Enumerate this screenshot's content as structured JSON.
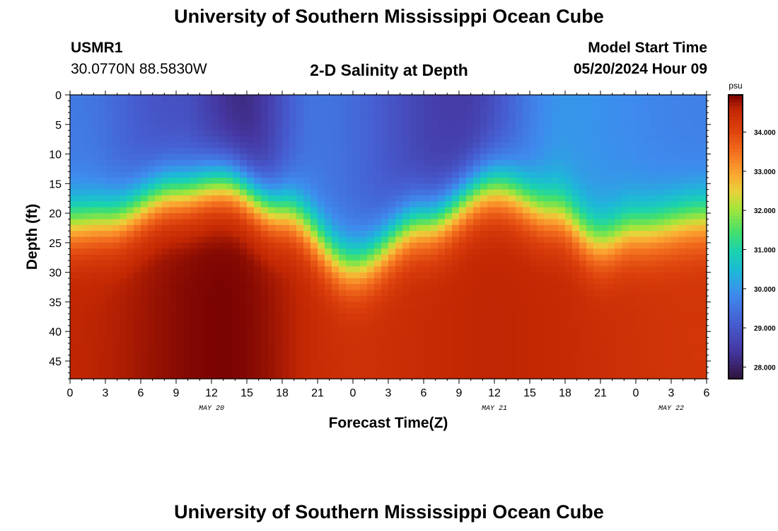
{
  "header": {
    "title": "University of Southern Mississippi Ocean Cube",
    "station_id": "USMR1",
    "station_coords": "30.0770N  88.5830W",
    "plot_title": "2-D Salinity at Depth",
    "model_start_label": "Model Start Time",
    "model_start_value": "05/20/2024 Hour 09"
  },
  "footer": {
    "title": "University of Southern Mississippi Ocean Cube"
  },
  "colors": {
    "background": "#ffffff",
    "text": "#000000"
  },
  "chart_data": {
    "type": "heatmap",
    "title": "2-D Salinity at Depth",
    "xlabel": "Forecast Time(Z)",
    "ylabel": "Depth (ft)",
    "x_tick_labels": [
      "0",
      "3",
      "6",
      "9",
      "12",
      "15",
      "18",
      "21",
      "0",
      "3",
      "6",
      "9",
      "12",
      "15",
      "18",
      "21",
      "0",
      "3",
      "6"
    ],
    "date_labels": [
      {
        "label": "MAY 20",
        "tick_index": 4
      },
      {
        "label": "MAY 21",
        "tick_index": 12
      },
      {
        "label": "MAY 22",
        "tick_index": 17
      }
    ],
    "xlim_hours": [
      0,
      54
    ],
    "y_ticks": [
      0,
      5,
      10,
      15,
      20,
      25,
      30,
      35,
      40,
      45
    ],
    "ylim": [
      0,
      48
    ],
    "colorbar": {
      "unit": "psu",
      "tick_labels": [
        "28.000",
        "29.000",
        "30.000",
        "31.000",
        "32.000",
        "33.000",
        "34.000"
      ],
      "range": [
        27.7,
        34.95
      ]
    },
    "surface_salinity": [
      {
        "hour": 0,
        "value": 29.6
      },
      {
        "hour": 9,
        "value": 28.9
      },
      {
        "hour": 14.5,
        "value": 28.2
      },
      {
        "hour": 21,
        "value": 29.5
      },
      {
        "hour": 33,
        "value": 28.5
      },
      {
        "hour": 42,
        "value": 30.0
      },
      {
        "hour": 54,
        "value": 29.7
      }
    ],
    "halocline_depth_ft": [
      {
        "hour": 0,
        "value": 21
      },
      {
        "hour": 3,
        "value": 20.5
      },
      {
        "hour": 9,
        "value": 16
      },
      {
        "hour": 13,
        "value": 14.5
      },
      {
        "hour": 18,
        "value": 19
      },
      {
        "hour": 24,
        "value": 28
      },
      {
        "hour": 30,
        "value": 21
      },
      {
        "hour": 36,
        "value": 15
      },
      {
        "hour": 41,
        "value": 19
      },
      {
        "hour": 45,
        "value": 24
      },
      {
        "hour": 48,
        "value": 22
      },
      {
        "hour": 54,
        "value": 20
      }
    ],
    "bottom_salinity": [
      {
        "hour": 0,
        "value": 34.6
      },
      {
        "hour": 13,
        "value": 34.95
      },
      {
        "hour": 24,
        "value": 34.4
      },
      {
        "hour": 36,
        "value": 34.6
      },
      {
        "hour": 54,
        "value": 34.3
      }
    ]
  }
}
